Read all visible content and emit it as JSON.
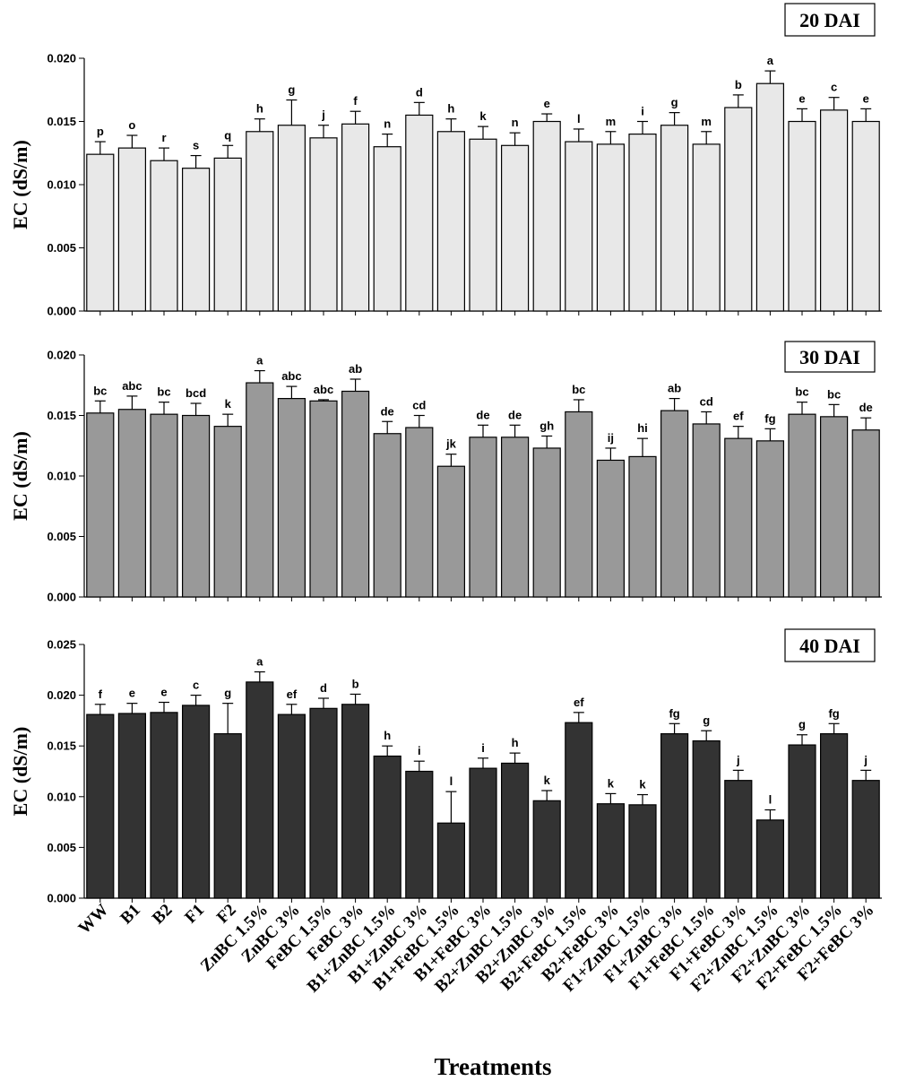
{
  "chart_data": {
    "type": "bar",
    "xlabel": "Treatments",
    "categories": [
      "WW",
      "B1",
      "B2",
      "F1",
      "F2",
      "ZnBC 1.5%",
      "ZnBC 3%",
      "FeBC 1.5%",
      "FeBC 3%",
      "B1+ZnBC 1.5%",
      "B1+ZnBC 3%",
      "B1+FeBC 1.5%",
      "B1+FeBC 3%",
      "B2+ZnBC 1.5%",
      "B2+ZnBC 3%",
      "B2+FeBC 1.5%",
      "B2+FeBC 3%",
      "F1+ZnBC 1.5%",
      "F1+ZnBC 3%",
      "F1+FeBC 1.5%",
      "F1+FeBC 3%",
      "F2+ZnBC 1.5%",
      "F2+ZnBC 3%",
      "F2+FeBC 1.5%",
      "F2+FeBC 3%"
    ],
    "panels": [
      {
        "title": "20 DAI",
        "ylabel": "EC (dS/m)",
        "ylim": [
          0,
          0.02
        ],
        "yticks": [
          "0.000",
          "0.005",
          "0.010",
          "0.015",
          "0.020"
        ],
        "color": "#e8e8e8",
        "values": [
          0.0124,
          0.0129,
          0.0119,
          0.0113,
          0.0121,
          0.0142,
          0.0147,
          0.0137,
          0.0148,
          0.013,
          0.0155,
          0.0142,
          0.0136,
          0.0131,
          0.015,
          0.0134,
          0.0132,
          0.014,
          0.0147,
          0.0132,
          0.0161,
          0.018,
          0.015,
          0.0159,
          0.015
        ],
        "errors": [
          0.001,
          0.001,
          0.001,
          0.001,
          0.001,
          0.001,
          0.002,
          0.001,
          0.001,
          0.001,
          0.001,
          0.001,
          0.001,
          0.001,
          0.0006,
          0.001,
          0.001,
          0.001,
          0.001,
          0.001,
          0.001,
          0.001,
          0.001,
          0.001,
          0.001
        ],
        "letters": [
          "p",
          "o",
          "r",
          "s",
          "q",
          "h",
          "g",
          "j",
          "f",
          "n",
          "d",
          "h",
          "k",
          "n",
          "e",
          "l",
          "m",
          "i",
          "g",
          "m",
          "b",
          "a",
          "e",
          "c",
          "e"
        ]
      },
      {
        "title": "30 DAI",
        "ylabel": "EC (dS/m)",
        "ylim": [
          0,
          0.02
        ],
        "yticks": [
          "0.000",
          "0.005",
          "0.010",
          "0.015",
          "0.020"
        ],
        "color": "#999999",
        "values": [
          0.0152,
          0.0155,
          0.0151,
          0.015,
          0.0141,
          0.0177,
          0.0164,
          0.0162,
          0.017,
          0.0135,
          0.014,
          0.0108,
          0.0132,
          0.0132,
          0.0123,
          0.0153,
          0.0113,
          0.0116,
          0.0154,
          0.0143,
          0.0131,
          0.0129,
          0.0151,
          0.0149,
          0.0138
        ],
        "errors": [
          0.001,
          0.0011,
          0.001,
          0.001,
          0.001,
          0.001,
          0.001,
          0.0001,
          0.001,
          0.001,
          0.001,
          0.001,
          0.001,
          0.001,
          0.001,
          0.001,
          0.001,
          0.0015,
          0.001,
          0.001,
          0.001,
          0.001,
          0.001,
          0.001,
          0.001
        ],
        "letters": [
          "bc",
          "abc",
          "bc",
          "bcd",
          "k",
          "a",
          "abc",
          "abc",
          "ab",
          "de",
          "cd",
          "jk",
          "de",
          "de",
          "gh",
          "bc",
          "ij",
          "hi",
          "ab",
          "cd",
          "ef",
          "fg",
          "bc",
          "bc",
          "de"
        ]
      },
      {
        "title": "40 DAI",
        "ylabel": "EC (dS/m)",
        "ylim": [
          0,
          0.025
        ],
        "yticks": [
          "0.000",
          "0.005",
          "0.010",
          "0.015",
          "0.020",
          "0.025"
        ],
        "color": "#333333",
        "values": [
          0.0181,
          0.0182,
          0.0183,
          0.019,
          0.0162,
          0.0213,
          0.0181,
          0.0187,
          0.0191,
          0.014,
          0.0125,
          0.0074,
          0.0128,
          0.0133,
          0.0096,
          0.0173,
          0.0093,
          0.0092,
          0.0162,
          0.0155,
          0.0116,
          0.0077,
          0.0151,
          0.0162,
          0.0116
        ],
        "errors": [
          0.001,
          0.001,
          0.001,
          0.001,
          0.003,
          0.001,
          0.001,
          0.001,
          0.001,
          0.001,
          0.001,
          0.0031,
          0.001,
          0.001,
          0.001,
          0.001,
          0.001,
          0.001,
          0.001,
          0.001,
          0.001,
          0.001,
          0.001,
          0.001,
          0.001
        ],
        "letters": [
          "f",
          "e",
          "e",
          "c",
          "g",
          "a",
          "ef",
          "d",
          "b",
          "h",
          "i",
          "l",
          "i",
          "h",
          "k",
          "ef",
          "k",
          "k",
          "fg",
          "g",
          "j",
          "l",
          "g",
          "fg",
          "j"
        ]
      }
    ]
  }
}
